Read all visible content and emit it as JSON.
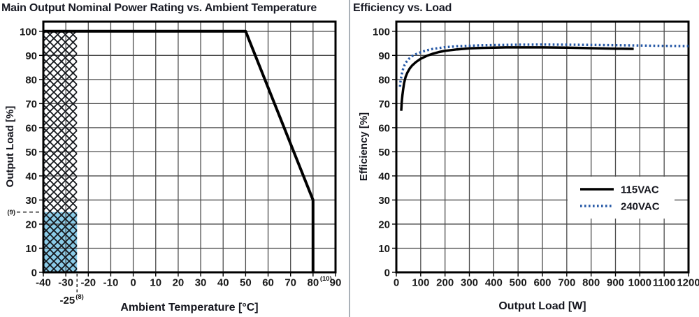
{
  "divider": {
    "color": "#9aa1a9"
  },
  "chart_data": [
    {
      "id": "derating",
      "type": "line",
      "title": "Main Output Nominal Power Rating vs. Ambient Temperature",
      "xlabel": "Ambient Temperature [°C]",
      "ylabel": "Output Load [%]",
      "xlim": [
        -40,
        90
      ],
      "ylim": [
        0,
        104
      ],
      "x_ticks": [
        -40,
        -30,
        -20,
        -10,
        0,
        10,
        20,
        30,
        40,
        50,
        60,
        70,
        80,
        90
      ],
      "y_ticks": [
        0,
        10,
        20,
        30,
        40,
        50,
        60,
        70,
        80,
        90,
        100
      ],
      "grid": true,
      "grid_color": "#4c4c4c",
      "series": [
        {
          "name": "derating-curve",
          "style": "solid",
          "color": "#000000",
          "width": 4,
          "points": [
            [
              -40,
              100
            ],
            [
              50,
              100
            ],
            [
              80,
              30
            ],
            [
              80,
              0
            ]
          ]
        }
      ],
      "regions": [
        {
          "name": "hatched-operating-region",
          "fill": "hatch",
          "x": [
            -40,
            -25
          ],
          "y": [
            0,
            100
          ]
        },
        {
          "name": "reduced-load-region",
          "fill": "#8bcce8",
          "x": [
            -40,
            -25
          ],
          "y": [
            0,
            25
          ]
        }
      ],
      "annotations": [
        {
          "name": "note-9",
          "type": "y-dash",
          "text": "(9)",
          "y": 25
        },
        {
          "name": "note-8",
          "type": "x-dash",
          "text": "-25",
          "sup": "(8)",
          "x": -25
        },
        {
          "name": "note-10",
          "type": "tick-sup",
          "text": "(10)",
          "x": 80
        }
      ]
    },
    {
      "id": "efficiency",
      "type": "line",
      "title": "Efficiency vs. Load",
      "xlabel": "Output Load [W]",
      "ylabel": "Efficiency [%]",
      "xlim": [
        0,
        1200
      ],
      "ylim": [
        0,
        104
      ],
      "x_ticks": [
        0,
        100,
        200,
        300,
        400,
        500,
        600,
        700,
        800,
        900,
        1000,
        1100,
        1200
      ],
      "y_ticks": [
        0,
        10,
        20,
        30,
        40,
        50,
        60,
        70,
        80,
        90,
        100
      ],
      "grid": true,
      "grid_color": "#4c4c4c",
      "legend": {
        "position": "inside-right"
      },
      "series": [
        {
          "name": "115VAC",
          "style": "solid",
          "color": "#000000",
          "width": 3.5,
          "points": [
            [
              20,
              67
            ],
            [
              22,
              70.5
            ],
            [
              25,
              73.5
            ],
            [
              28,
              76
            ],
            [
              32,
              78.5
            ],
            [
              38,
              81
            ],
            [
              45,
              82.8
            ],
            [
              55,
              84.6
            ],
            [
              65,
              85.8
            ],
            [
              80,
              87.2
            ],
            [
              100,
              88.6
            ],
            [
              125,
              89.8
            ],
            [
              150,
              90.7
            ],
            [
              175,
              91.4
            ],
            [
              200,
              91.9
            ],
            [
              250,
              92.5
            ],
            [
              300,
              92.9
            ],
            [
              350,
              93.1
            ],
            [
              400,
              93.2
            ],
            [
              450,
              93.3
            ],
            [
              500,
              93.3
            ],
            [
              600,
              93.3
            ],
            [
              700,
              93.2
            ],
            [
              800,
              93.0
            ],
            [
              900,
              92.8
            ],
            [
              975,
              92.7
            ]
          ]
        },
        {
          "name": "240VAC",
          "style": "dotted",
          "color": "#2457a5",
          "width": 3.4,
          "points": [
            [
              15,
              77
            ],
            [
              17,
              79
            ],
            [
              20,
              81
            ],
            [
              24,
              83
            ],
            [
              28,
              84.5
            ],
            [
              34,
              86
            ],
            [
              42,
              87.4
            ],
            [
              52,
              88.6
            ],
            [
              65,
              89.7
            ],
            [
              80,
              90.5
            ],
            [
              100,
              91.3
            ],
            [
              125,
              92.1
            ],
            [
              150,
              92.7
            ],
            [
              200,
              93.4
            ],
            [
              250,
              93.8
            ],
            [
              300,
              94.0
            ],
            [
              350,
              94.2
            ],
            [
              400,
              94.3
            ],
            [
              500,
              94.45
            ],
            [
              600,
              94.5
            ],
            [
              700,
              94.45
            ],
            [
              800,
              94.35
            ],
            [
              900,
              94.25
            ],
            [
              1000,
              94.1
            ],
            [
              1100,
              93.95
            ],
            [
              1200,
              93.85
            ]
          ]
        }
      ]
    }
  ]
}
